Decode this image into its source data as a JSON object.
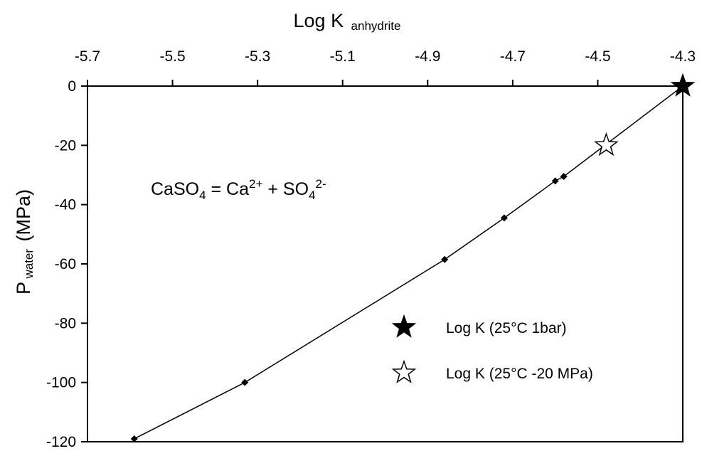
{
  "chart_data": {
    "type": "line",
    "x_axis": {
      "label_main": "Log K",
      "label_sub": "anhydrite",
      "position": "top",
      "range": [
        -5.7,
        -4.3
      ],
      "ticks": [
        -5.7,
        -5.5,
        -5.3,
        -5.1,
        -4.9,
        -4.7,
        -4.5,
        -4.3
      ],
      "tick_labels": [
        "-5.7",
        "-5.5",
        "-5.3",
        "-5.1",
        "-4.9",
        "-4.7",
        "-4.5",
        "-4.3"
      ]
    },
    "y_axis": {
      "label_main": "P",
      "label_sub": "water",
      "label_unit": "(MPa)",
      "range": [
        -120,
        0
      ],
      "ticks": [
        0,
        -20,
        -40,
        -60,
        -80,
        -100,
        -120
      ],
      "tick_labels": [
        "0",
        "-20",
        "-40",
        "-60",
        "-80",
        "-100",
        "-120"
      ]
    },
    "series": [
      {
        "marker": "diamond",
        "points": [
          {
            "x": -5.59,
            "y": -119
          },
          {
            "x": -5.33,
            "y": -100
          },
          {
            "x": -4.86,
            "y": -58.5
          },
          {
            "x": -4.72,
            "y": -44.5
          },
          {
            "x": -4.6,
            "y": -32
          },
          {
            "x": -4.58,
            "y": -30.5
          },
          {
            "x": -4.3,
            "y": 0
          }
        ]
      }
    ],
    "highlight_points": [
      {
        "x": -4.3,
        "y": 0,
        "marker": "filled-star",
        "legend_label": "Log K (25°C 1bar)"
      },
      {
        "x": -4.48,
        "y": -20,
        "marker": "open-star",
        "legend_label": "Log K (25°C -20 MPa)"
      }
    ],
    "annotation": {
      "base1": "CaSO",
      "sub1": "4",
      "mid1": " = Ca",
      "sup1": "2+",
      "mid2": " + SO",
      "sub2": "4",
      "sup2": "2-"
    },
    "legend_placement": "bottom-right",
    "grid": false
  }
}
